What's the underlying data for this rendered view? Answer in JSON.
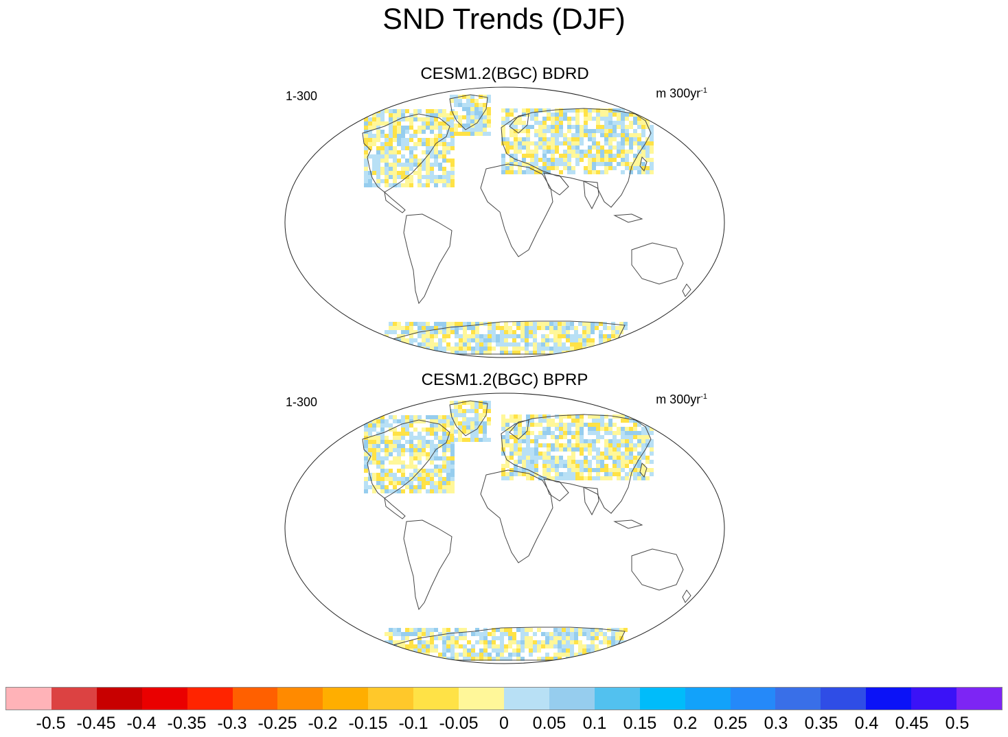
{
  "title": "SND Trends (DJF)",
  "panels": [
    {
      "title": "CESM1.2(BGC) BDRD",
      "left_label": "1-300",
      "right_label": "m 300yr",
      "right_label_exp": "-1"
    },
    {
      "title": "CESM1.2(BGC) BPRP",
      "left_label": "1-300",
      "right_label": "m 300yr",
      "right_label_exp": "-1"
    }
  ],
  "colorbar": {
    "colors": [
      "#ffb3b8",
      "#dc4242",
      "#c80000",
      "#ea0000",
      "#ff2400",
      "#ff6000",
      "#ff8a00",
      "#ffae00",
      "#ffc82a",
      "#ffe246",
      "#fff799",
      "#b8e0f5",
      "#96cdee",
      "#52c1ef",
      "#00bcfa",
      "#12a2fa",
      "#2589f9",
      "#396fe8",
      "#2f4de6",
      "#0b12f7",
      "#3b12f7",
      "#7d25f4"
    ],
    "labels": [
      "-0.5",
      "-0.45",
      "-0.4",
      "-0.35",
      "-0.3",
      "-0.25",
      "-0.2",
      "-0.15",
      "-0.1",
      "-0.05",
      "0",
      "0.05",
      "0.1",
      "0.15",
      "0.2",
      "0.25",
      "0.3",
      "0.35",
      "0.4",
      "0.45",
      "0.5"
    ]
  }
}
